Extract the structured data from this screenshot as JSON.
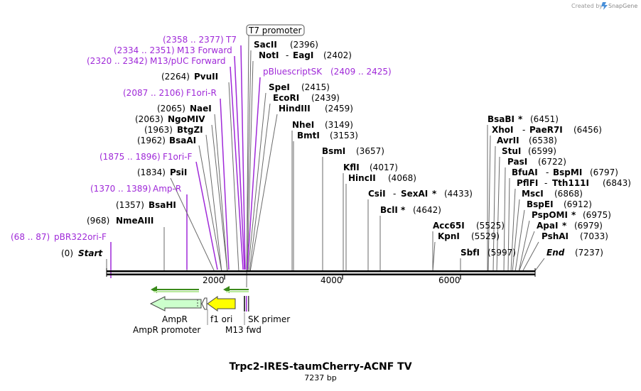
{
  "watermark": {
    "text": "Created by",
    "brand": "SnapGene"
  },
  "map": {
    "title": "Trpc2-IRES-taumCherry-ACNF TV",
    "length": "7237 bp"
  },
  "axis": {
    "ticks": [
      "2000",
      "4000",
      "6000"
    ]
  },
  "promoter_box": "T7 promoter",
  "sites": [
    {
      "name": "Start",
      "pos": "(0)"
    },
    {
      "name": "pBR322ori-F",
      "pos": "(68 .. 87)"
    },
    {
      "name": "NmeAIII",
      "pos": "(968)"
    },
    {
      "name": "BsaHI",
      "pos": "(1357)"
    },
    {
      "name": "Amp-R",
      "pos": "(1370 .. 1389)"
    },
    {
      "name": "PsiI",
      "pos": "(1834)"
    },
    {
      "name": "F1ori-F",
      "pos": "(1875 .. 1896)"
    },
    {
      "name": "BsaAI",
      "pos": "(1962)"
    },
    {
      "name": "BtgZI",
      "pos": "(1963)"
    },
    {
      "name": "NgoMIV",
      "pos": "(2063)"
    },
    {
      "name": "NaeI",
      "pos": "(2065)"
    },
    {
      "name": "F1ori-R",
      "pos": "(2087 .. 2106)"
    },
    {
      "name": "PvuII",
      "pos": "(2264)"
    },
    {
      "name": "M13/pUC Forward",
      "pos": "(2320 .. 2342)"
    },
    {
      "name": "M13 Forward",
      "pos": "(2334 .. 2351)"
    },
    {
      "name": "T7",
      "pos": "(2358 .. 2377)"
    },
    {
      "name": "SacII",
      "pos": "(2396)"
    },
    {
      "name": "NotI",
      "name2": "EagI",
      "sep": "-",
      "pos": "(2402)"
    },
    {
      "name": "pBluescriptSK",
      "pos": "(2409 .. 2425)"
    },
    {
      "name": "SpeI",
      "pos": "(2415)"
    },
    {
      "name": "EcoRI",
      "pos": "(2439)"
    },
    {
      "name": "HindIII",
      "pos": "(2459)"
    },
    {
      "name": "NheI",
      "pos": "(3149)"
    },
    {
      "name": "BmtI",
      "pos": "(3153)"
    },
    {
      "name": "BsmI",
      "pos": "(3657)"
    },
    {
      "name": "KflI",
      "pos": "(4017)"
    },
    {
      "name": "HincII",
      "pos": "(4068)"
    },
    {
      "name": "CsiI",
      "name2": "SexAI",
      "sep": "-",
      "star": "*",
      "pos": "(4433)"
    },
    {
      "name": "BclI",
      "star": "*",
      "pos": "(4642)"
    },
    {
      "name": "Acc65I",
      "pos": "(5525)"
    },
    {
      "name": "KpnI",
      "pos": "(5529)"
    },
    {
      "name": "SbfI",
      "pos": "(5997)"
    },
    {
      "name": "BsaBI",
      "star": "*",
      "pos": "(6451)"
    },
    {
      "name": "XhoI",
      "name2": "PaeR7I",
      "sep": "-",
      "pos": "(6456)"
    },
    {
      "name": "AvrII",
      "pos": "(6538)"
    },
    {
      "name": "StuI",
      "pos": "(6599)"
    },
    {
      "name": "PasI",
      "pos": "(6722)"
    },
    {
      "name": "BfuAI",
      "name2": "BspMI",
      "sep": "-",
      "pos": "(6797)"
    },
    {
      "name": "PflFI",
      "name2": "Tth111I",
      "sep": "-",
      "pos": "(6843)"
    },
    {
      "name": "MscI",
      "pos": "(6868)"
    },
    {
      "name": "BspEI",
      "pos": "(6912)"
    },
    {
      "name": "PspOMI",
      "star": "*",
      "pos": "(6975)"
    },
    {
      "name": "ApaI",
      "star": "*",
      "pos": "(6979)"
    },
    {
      "name": "PshAI",
      "pos": "(7033)"
    },
    {
      "name": "End",
      "pos": "(7237)"
    }
  ],
  "features": {
    "ampr": "AmpR",
    "ampr_promoter": "AmpR promoter",
    "f1_ori": "f1 ori",
    "m13_fwd": "M13 fwd",
    "sk_primer": "SK primer"
  },
  "colors": {
    "primer": "#9f29d8",
    "ampr": "#ccffcc",
    "f1ori": "#ffff00",
    "arrow": "#3a8a1a"
  }
}
